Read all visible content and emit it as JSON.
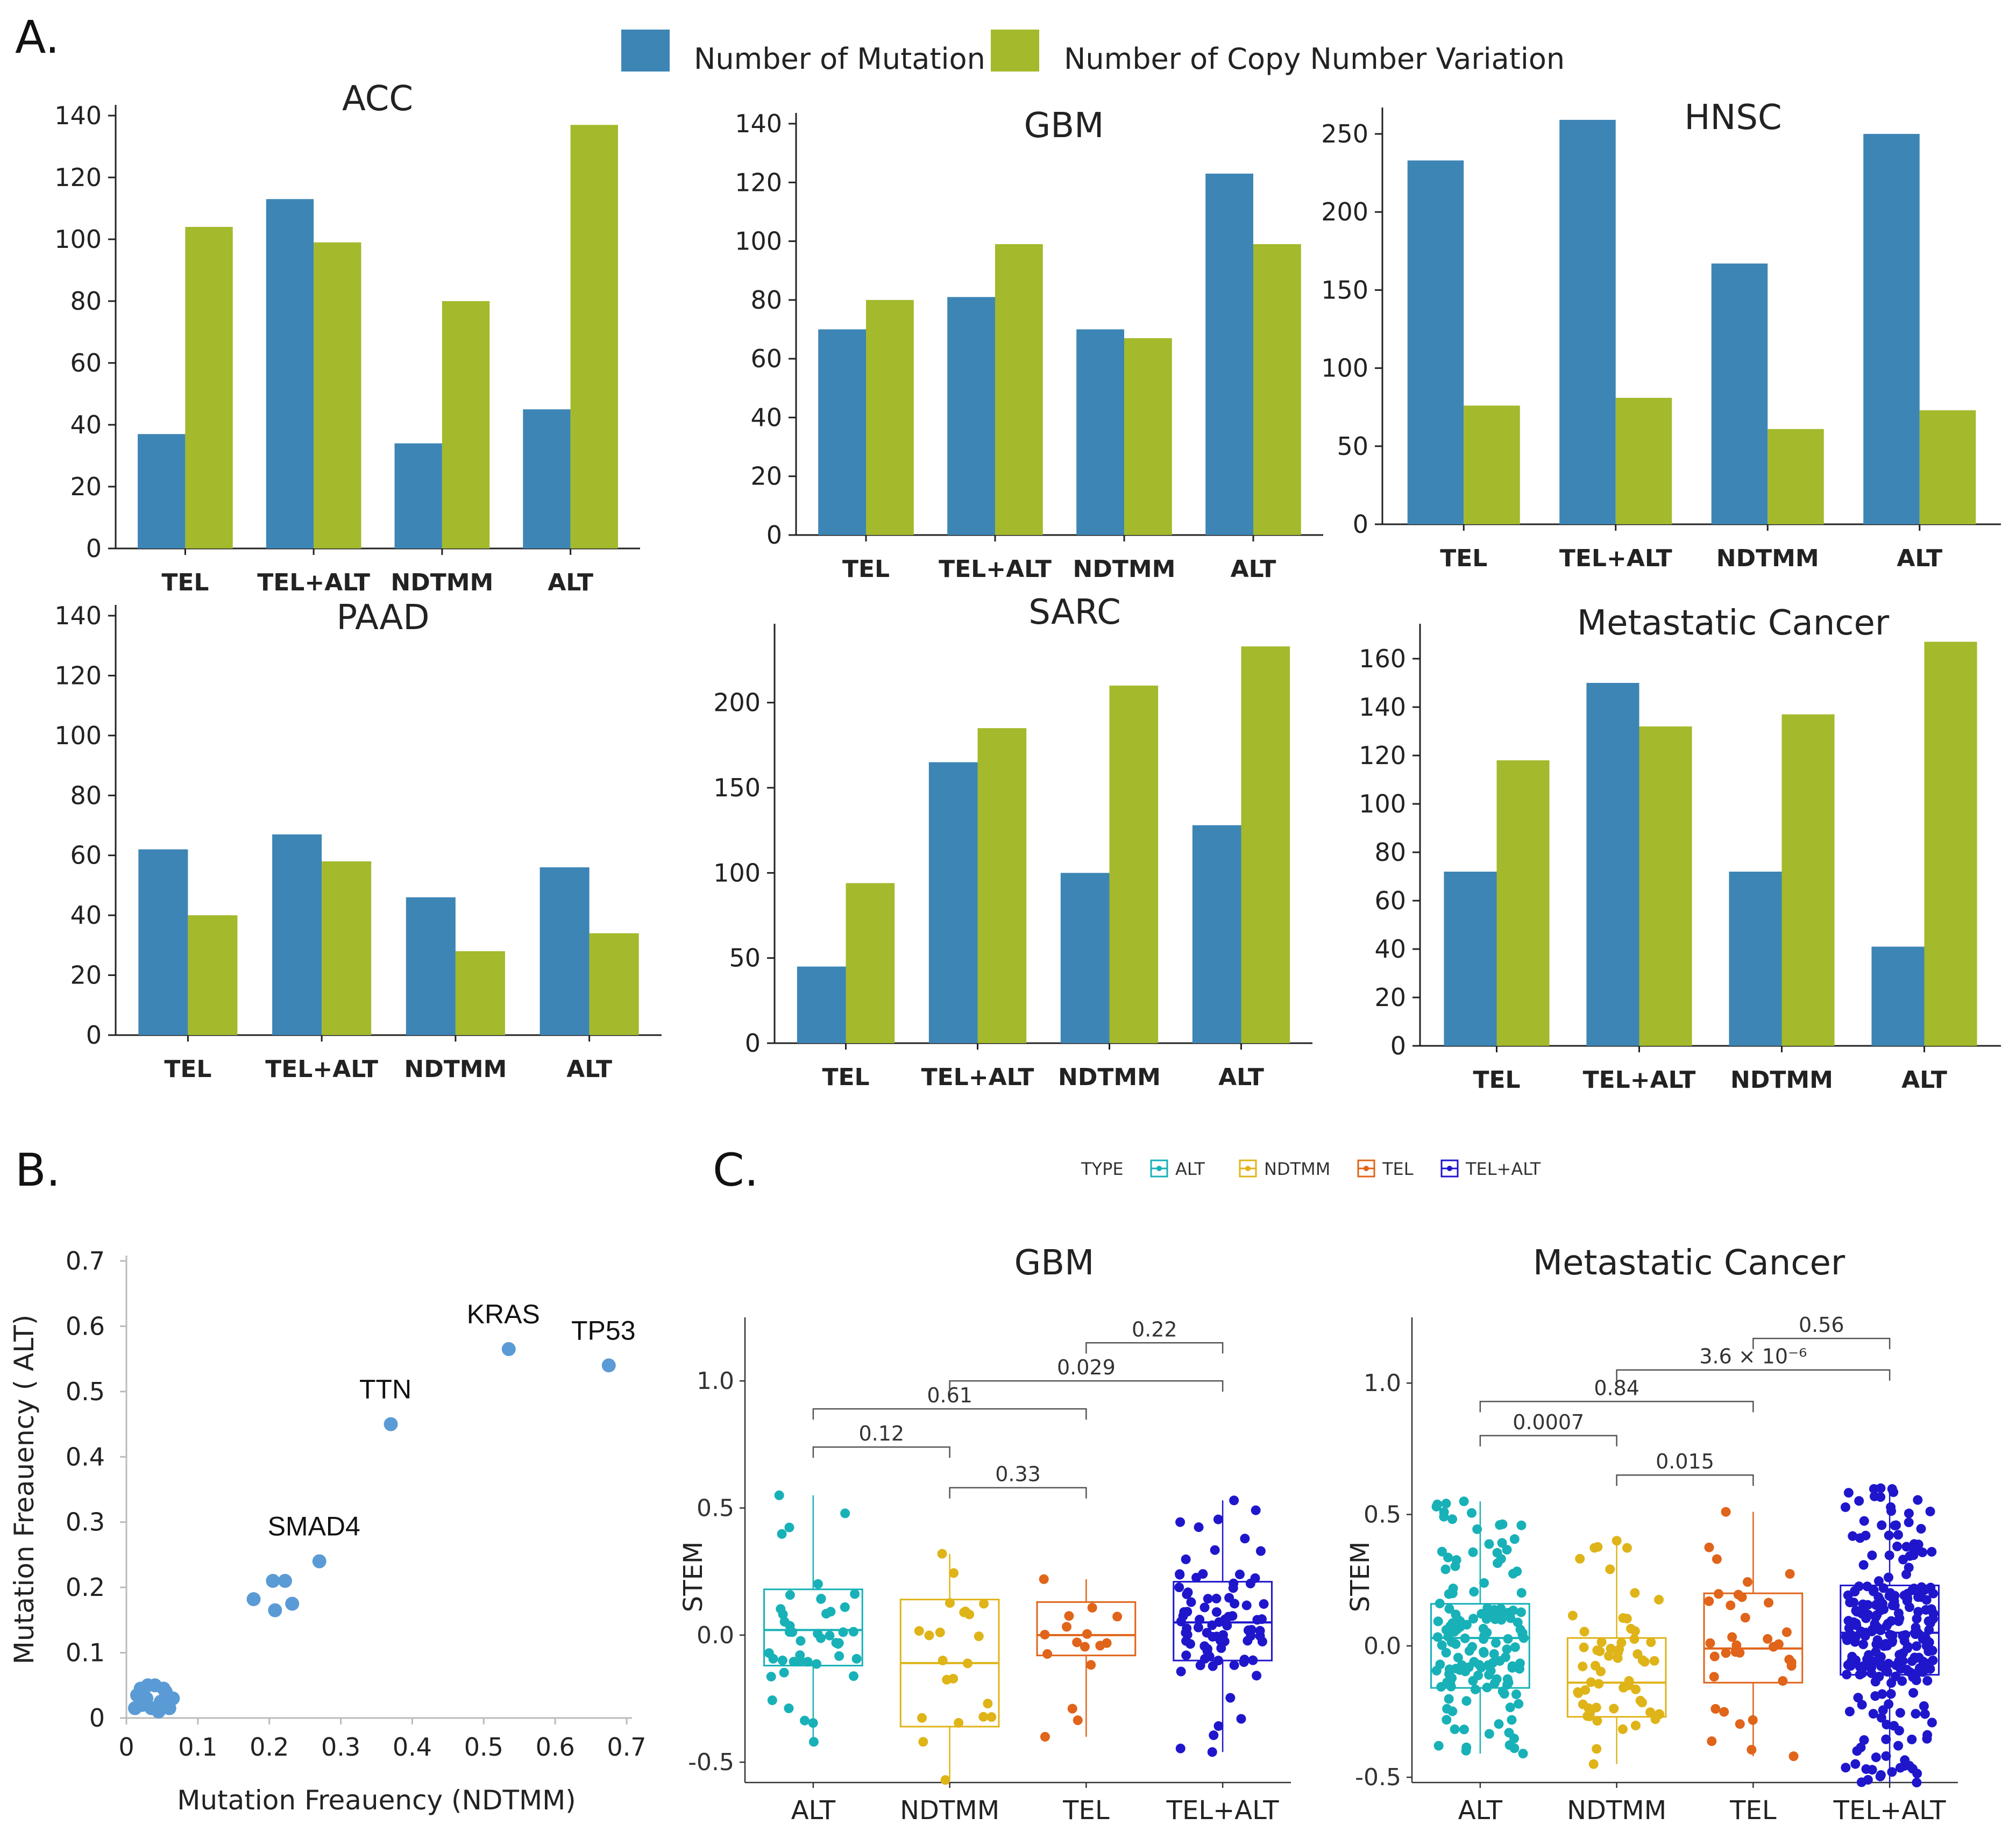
{
  "panel_labels": {
    "a": "A.",
    "b": "B.",
    "c": "C."
  },
  "legend_a": {
    "mutation": {
      "label": "Number of Mutation",
      "color": "#3d85b5"
    },
    "cnv": {
      "label": "Number of Copy Number Variation",
      "color": "#a4b92c"
    }
  },
  "legend_c": {
    "title": "TYPE",
    "items": [
      {
        "label": "ALT",
        "color": "#18b1b8"
      },
      {
        "label": "NDTMM",
        "color": "#dfb419"
      },
      {
        "label": "TEL",
        "color": "#e0641a"
      },
      {
        "label": "TEL+ALT",
        "color": "#1f16cc"
      }
    ]
  },
  "chart_data": [
    {
      "type": "bar",
      "title": "ACC",
      "categories": [
        "TEL",
        "TEL+ALT",
        "NDTMM",
        "ALT"
      ],
      "series": [
        {
          "name": "Number of Mutation",
          "values": [
            37,
            113,
            34,
            45
          ]
        },
        {
          "name": "Number of Copy Number Variation",
          "values": [
            104,
            99,
            80,
            137
          ]
        }
      ],
      "ylim": [
        0,
        140
      ],
      "yticks": [
        "0",
        "20",
        "40",
        "60",
        "80",
        "100",
        "120",
        "140"
      ]
    },
    {
      "type": "bar",
      "title": "GBM",
      "categories": [
        "TEL",
        "TEL+ALT",
        "NDTMM",
        "ALT"
      ],
      "series": [
        {
          "name": "Number of Mutation",
          "values": [
            70,
            81,
            70,
            123
          ]
        },
        {
          "name": "Number of Copy Number Variation",
          "values": [
            80,
            99,
            67,
            99
          ]
        }
      ],
      "ylim": [
        0,
        140
      ],
      "yticks": [
        "0",
        "20",
        "40",
        "60",
        "80",
        "100",
        "120",
        "140"
      ]
    },
    {
      "type": "bar",
      "title": "HNSC",
      "categories": [
        "TEL",
        "TEL+ALT",
        "NDTMM",
        "ALT"
      ],
      "series": [
        {
          "name": "Number of Mutation",
          "values": [
            233,
            259,
            167,
            250
          ]
        },
        {
          "name": "Number of Copy Number Variation",
          "values": [
            76,
            81,
            61,
            73
          ]
        }
      ],
      "ylim": [
        0,
        260
      ],
      "yticks": [
        "0",
        "50",
        "100",
        "150",
        "200",
        "250"
      ]
    },
    {
      "type": "bar",
      "title": "PAAD",
      "categories": [
        "TEL",
        "TEL+ALT",
        "NDTMM",
        "ALT"
      ],
      "series": [
        {
          "name": "Number of Mutation",
          "values": [
            62,
            67,
            46,
            56
          ]
        },
        {
          "name": "Number of Copy Number Variation",
          "values": [
            40,
            58,
            28,
            34
          ]
        }
      ],
      "ylim": [
        0,
        140
      ],
      "yticks": [
        "0",
        "20",
        "40",
        "60",
        "80",
        "100",
        "120",
        "140"
      ]
    },
    {
      "type": "bar",
      "title": "SARC",
      "categories": [
        "TEL",
        "TEL+ALT",
        "NDTMM",
        "ALT"
      ],
      "series": [
        {
          "name": "Number of Mutation",
          "values": [
            45,
            165,
            100,
            128
          ]
        },
        {
          "name": "Number of Copy Number Variation",
          "values": [
            94,
            185,
            210,
            233
          ]
        }
      ],
      "ylim": [
        0,
        240
      ],
      "yticks": [
        "0",
        "50",
        "100",
        "150",
        "200"
      ]
    },
    {
      "type": "bar",
      "title": "Metastatic Cancer",
      "categories": [
        "TEL",
        "TEL+ALT",
        "NDTMM",
        "ALT"
      ],
      "series": [
        {
          "name": "Number of Mutation",
          "values": [
            72,
            150,
            72,
            41
          ]
        },
        {
          "name": "Number of Copy Number Variation",
          "values": [
            118,
            132,
            137,
            167
          ]
        }
      ],
      "ylim": [
        0,
        170
      ],
      "yticks": [
        "0",
        "20",
        "40",
        "60",
        "80",
        "100",
        "120",
        "140",
        "160"
      ]
    },
    {
      "type": "scatter",
      "xlabel": "Mutation Freauency (NDTMM)",
      "ylabel": "Mutation Freauency ( ALT)",
      "xlim": [
        0,
        0.7
      ],
      "ylim": [
        0,
        0.7
      ],
      "xticks": [
        "0",
        "0.1",
        "0.2",
        "0.3",
        "0.4",
        "0.5",
        "0.6",
        "0.7"
      ],
      "yticks": [
        "0",
        "0.1",
        "0.2",
        "0.3",
        "0.4",
        "0.5",
        "0.6",
        "0.7"
      ],
      "points": [
        {
          "x": 0.675,
          "y": 0.54,
          "label": "TP53"
        },
        {
          "x": 0.535,
          "y": 0.565,
          "label": "KRAS"
        },
        {
          "x": 0.37,
          "y": 0.45,
          "label": "TTN"
        },
        {
          "x": 0.27,
          "y": 0.24,
          "label": "SMAD4"
        },
        {
          "x": 0.178,
          "y": 0.182,
          "label": ""
        },
        {
          "x": 0.205,
          "y": 0.21,
          "label": ""
        },
        {
          "x": 0.222,
          "y": 0.21,
          "label": ""
        },
        {
          "x": 0.208,
          "y": 0.165,
          "label": ""
        },
        {
          "x": 0.232,
          "y": 0.175,
          "label": ""
        },
        {
          "x": 0.012,
          "y": 0.015,
          "label": ""
        },
        {
          "x": 0.02,
          "y": 0.045,
          "label": ""
        },
        {
          "x": 0.028,
          "y": 0.03,
          "label": ""
        },
        {
          "x": 0.035,
          "y": 0.015,
          "label": ""
        },
        {
          "x": 0.04,
          "y": 0.05,
          "label": ""
        },
        {
          "x": 0.048,
          "y": 0.025,
          "label": ""
        },
        {
          "x": 0.055,
          "y": 0.04,
          "label": ""
        },
        {
          "x": 0.06,
          "y": 0.015,
          "label": ""
        },
        {
          "x": 0.065,
          "y": 0.03,
          "label": ""
        },
        {
          "x": 0.015,
          "y": 0.035,
          "label": ""
        },
        {
          "x": 0.03,
          "y": 0.05,
          "label": ""
        },
        {
          "x": 0.045,
          "y": 0.01,
          "label": ""
        },
        {
          "x": 0.052,
          "y": 0.045,
          "label": ""
        },
        {
          "x": 0.022,
          "y": 0.02,
          "label": ""
        }
      ]
    },
    {
      "type": "box",
      "title": "GBM",
      "ylabel": "STEM",
      "categories": [
        "ALT",
        "NDTMM",
        "TEL",
        "TEL+ALT"
      ],
      "ylim": [
        -0.58,
        1.25
      ],
      "yticks": [
        {
          "v": -0.5,
          "t": "-0.5"
        },
        {
          "v": 0.0,
          "t": "0.0"
        },
        {
          "v": 0.5,
          "t": "0.5"
        },
        {
          "v": 1.0,
          "t": "1.0"
        }
      ],
      "boxes": [
        {
          "q1": -0.12,
          "med": 0.02,
          "q3": 0.18,
          "lo": -0.42,
          "hi": 0.55,
          "n": 45
        },
        {
          "q1": -0.36,
          "med": -0.11,
          "q3": 0.14,
          "lo": -0.57,
          "hi": 0.32,
          "n": 22
        },
        {
          "q1": -0.08,
          "med": 0.0,
          "q3": 0.13,
          "lo": -0.4,
          "hi": 0.22,
          "n": 16
        },
        {
          "q1": -0.1,
          "med": 0.05,
          "q3": 0.21,
          "lo": -0.46,
          "hi": 0.53,
          "n": 85
        }
      ],
      "brackets": [
        {
          "a": 0,
          "b": 1,
          "y": 0.74,
          "label": "0.12"
        },
        {
          "a": 0,
          "b": 2,
          "y": 0.89,
          "label": "0.61"
        },
        {
          "a": 1,
          "b": 3,
          "y": 1.0,
          "label": "0.029"
        },
        {
          "a": 2,
          "b": 3,
          "y": 1.15,
          "label": "0.22"
        },
        {
          "a": 1,
          "b": 2,
          "y": 0.58,
          "label": "0.33"
        }
      ]
    },
    {
      "type": "box",
      "title": "Metastatic Cancer",
      "ylabel": "STEM",
      "categories": [
        "ALT",
        "NDTMM",
        "TEL",
        "TEL+ALT"
      ],
      "ylim": [
        -0.52,
        1.25
      ],
      "yticks": [
        {
          "v": -0.5,
          "t": "-0.5"
        },
        {
          "v": 0.0,
          "t": "0.0"
        },
        {
          "v": 0.5,
          "t": "0.5"
        },
        {
          "v": 1.0,
          "t": "1.0"
        }
      ],
      "boxes": [
        {
          "q1": -0.16,
          "med": 0.03,
          "q3": 0.16,
          "lo": -0.41,
          "hi": 0.55,
          "n": 150
        },
        {
          "q1": -0.27,
          "med": -0.14,
          "q3": 0.03,
          "lo": -0.45,
          "hi": 0.4,
          "n": 60
        },
        {
          "q1": -0.14,
          "med": -0.01,
          "q3": 0.2,
          "lo": -0.42,
          "hi": 0.51,
          "n": 35
        },
        {
          "q1": -0.11,
          "med": 0.05,
          "q3": 0.23,
          "lo": -0.52,
          "hi": 0.6,
          "n": 260
        }
      ],
      "brackets": [
        {
          "a": 0,
          "b": 1,
          "y": 0.8,
          "label": "0.0007"
        },
        {
          "a": 0,
          "b": 2,
          "y": 0.93,
          "label": "0.84"
        },
        {
          "a": 1,
          "b": 3,
          "y": 1.05,
          "label": "3.6 × 10⁻⁶"
        },
        {
          "a": 2,
          "b": 3,
          "y": 1.17,
          "label": "0.56"
        },
        {
          "a": 1,
          "b": 2,
          "y": 0.65,
          "label": "0.015"
        }
      ]
    }
  ]
}
